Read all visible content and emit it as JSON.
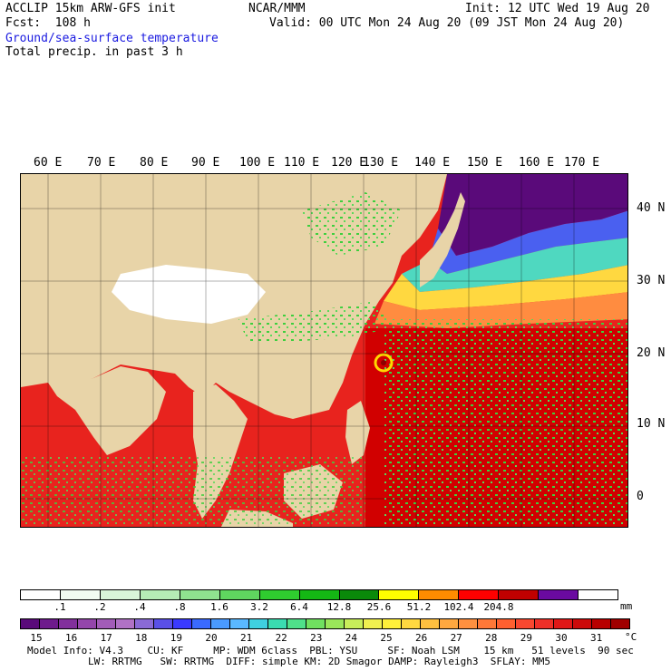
{
  "header": {
    "model": "ACCLIP 15km ARW-GFS init",
    "forecast": "Fcst:  108 h",
    "org": "NCAR/MMM",
    "init": "Init: 12 UTC Wed 19 Aug 20",
    "valid": "Valid: 00 UTC Mon 24 Aug 20 (09 JST Mon 24 Aug 20)",
    "field1": "Ground/sea-surface temperature",
    "field2": "Total precip. in past 3 h"
  },
  "map": {
    "lon_labels": [
      "60 E",
      "70 E",
      "80 E",
      "90 E",
      "100 E",
      "110 E",
      "120 E",
      "130 E",
      "140 E",
      "150 E",
      "160 E",
      "170 E"
    ],
    "lat_labels": [
      "40 N",
      "30 N",
      "20 N",
      "10 N",
      "0"
    ],
    "colors": {
      "land": "#e8d4a8",
      "tibet": "#ffffff",
      "sea_warm": "#e8231e",
      "sea_hot": "#d10000",
      "precip": "#3ecf3e"
    }
  },
  "precip_scale": {
    "labels": [
      ".1",
      ".2",
      ".4",
      ".8",
      "1.6",
      "3.2",
      "6.4",
      "12.8",
      "25.6",
      "51.2",
      "102.4",
      "204.8"
    ],
    "unit": "mm",
    "colors": [
      "#ffffff",
      "#f1fbf1",
      "#d9f5d9",
      "#b6ecb6",
      "#8fe28f",
      "#5fd65f",
      "#2fcc2f",
      "#14b814",
      "#0a8a0a",
      "#ffff00",
      "#ff8c00",
      "#ff0000",
      "#c00000",
      "#6a0aa0",
      "#ffffff"
    ]
  },
  "temp_scale": {
    "labels": [
      "15",
      "16",
      "17",
      "18",
      "19",
      "20",
      "21",
      "22",
      "23",
      "24",
      "25",
      "26",
      "27",
      "28",
      "29",
      "30",
      "31"
    ],
    "unit": "°C",
    "colors": [
      "#5a0a7a",
      "#6e1a8c",
      "#82309c",
      "#9446ab",
      "#a25cb8",
      "#b072c5",
      "#8a6ad6",
      "#5a50e8",
      "#3a3aff",
      "#3a6aff",
      "#4a9aff",
      "#5ab8ff",
      "#3fd0e0",
      "#3adcb0",
      "#4fe08a",
      "#70e060",
      "#9ae65a",
      "#c8ee5a",
      "#f0f050",
      "#fff03a",
      "#ffd840",
      "#ffc040",
      "#ffa840",
      "#ff9040",
      "#ff7838",
      "#ff6030",
      "#f84830",
      "#ee3028",
      "#e01818",
      "#cc0a0a",
      "#b80000",
      "#a00000"
    ]
  },
  "footer": {
    "line1": "Model Info: V4.3    CU: KF     MP: WDM 6class  PBL: YSU     SF: Noah LSM    15 km   51 levels  90 sec",
    "line2": "LW: RRTMG   SW: RRTMG  DIFF: simple KM: 2D Smagor DAMP: Rayleigh3  SFLAY: MM5"
  }
}
